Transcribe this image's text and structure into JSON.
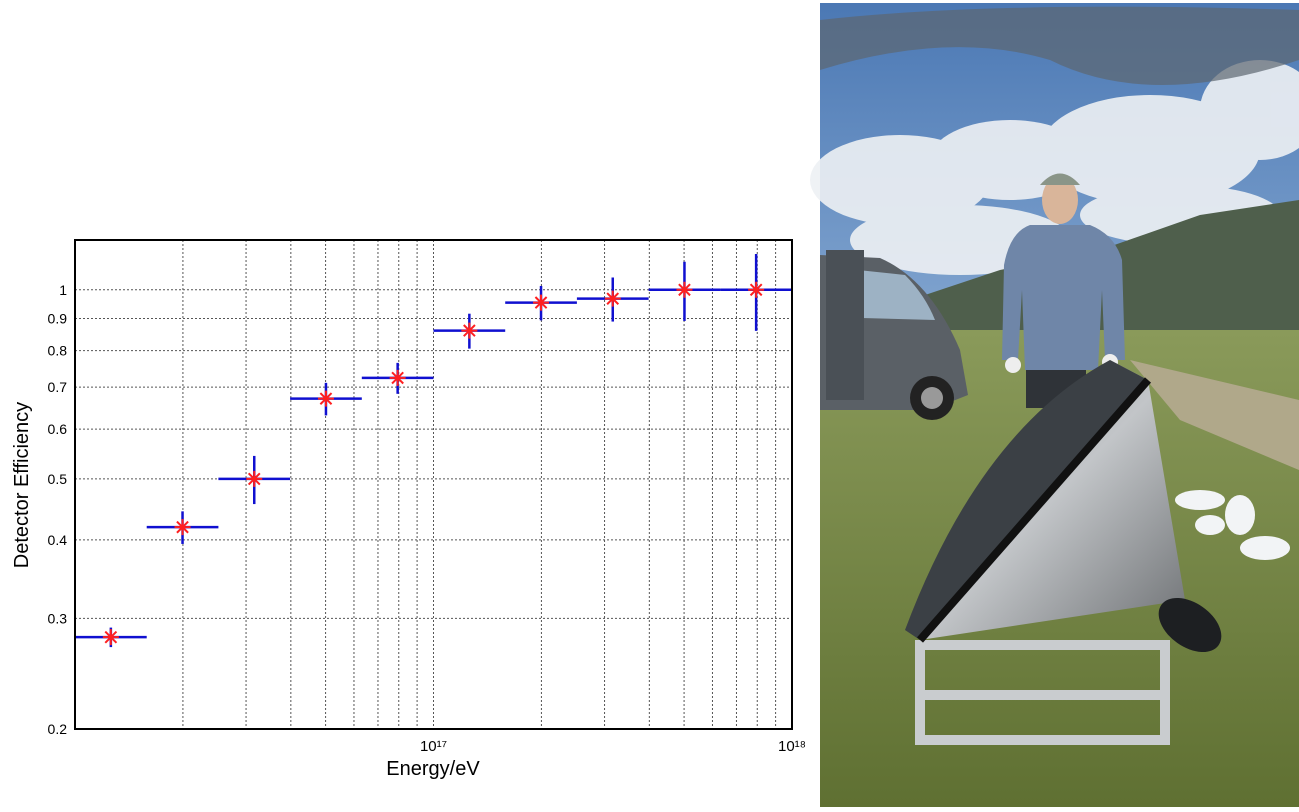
{
  "chart_data": {
    "type": "errorbar",
    "xlabel": "Energy/eV",
    "ylabel": "Detector Efficiency",
    "xscale": "log",
    "yscale": "log",
    "grid": true,
    "xlim": [
      1e+16,
      1e+18
    ],
    "ylim": [
      0.2,
      1.2
    ],
    "xticks": [
      {
        "value": 1e+17,
        "label": "10¹⁷"
      },
      {
        "value": 1e+18,
        "label": "10¹⁸"
      }
    ],
    "xminorticks": [
      2e+16,
      3e+16,
      4e+16,
      5e+16,
      6e+16,
      7e+16,
      8e+16,
      9e+16,
      2e+17,
      3e+17,
      4e+17,
      5e+17,
      6e+17,
      7e+17,
      8e+17,
      9e+17
    ],
    "yticks": [
      0.2,
      0.3,
      0.4,
      0.5,
      0.6,
      0.7,
      0.8,
      0.9,
      1
    ],
    "x": [
      1.259e+16,
      1.995e+16,
      3.162e+16,
      5.012e+16,
      7.943e+16,
      1.259e+17,
      1.995e+17,
      3.162e+17,
      5.012e+17,
      7.943e+17
    ],
    "x_edges": [
      1e+16,
      1.585e+16,
      2.512e+16,
      3.981e+16,
      6.31e+16,
      1e+17,
      1.585e+17,
      2.512e+17,
      3.981e+17,
      6.31e+17,
      1e+18
    ],
    "values": [
      0.28,
      0.419,
      0.5,
      0.671,
      0.724,
      0.861,
      0.954,
      0.968,
      1.0,
      1.0
    ],
    "errors": [
      0.01,
      0.025,
      0.044,
      0.04,
      0.041,
      0.055,
      0.06,
      0.078,
      0.108,
      0.14
    ],
    "bar_color": "#1010d0",
    "marker_color": "#ff2020"
  }
}
